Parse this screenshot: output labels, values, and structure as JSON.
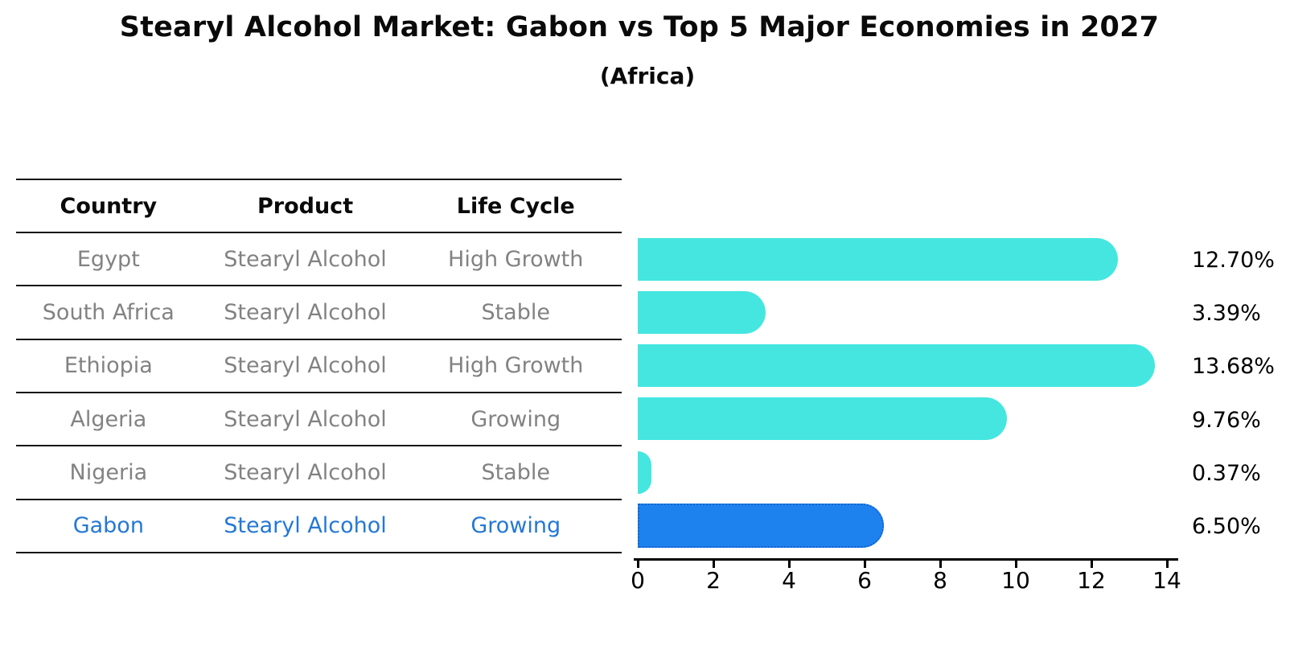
{
  "title": "Stearyl Alcohol Market: Gabon vs Top 5 Major Economies in 2027",
  "subtitle": "(Africa)",
  "colors": {
    "bar_default": "#45E6E0",
    "bar_highlight": "#1E82EE",
    "bar_highlight_border": "#1263CC",
    "highlight_text": "#2478D4",
    "cell_text": "#828282",
    "line": "#141414"
  },
  "table": {
    "headers": [
      "Country",
      "Product",
      "Life Cycle"
    ],
    "rows": [
      {
        "country": "Egypt",
        "product": "Stearyl Alcohol",
        "life_cycle": "High Growth",
        "highlight": false
      },
      {
        "country": "South Africa",
        "product": "Stearyl Alcohol",
        "life_cycle": "Stable",
        "highlight": false
      },
      {
        "country": "Ethiopia",
        "product": "Stearyl Alcohol",
        "life_cycle": "High Growth",
        "highlight": false
      },
      {
        "country": "Algeria",
        "product": "Stearyl Alcohol",
        "life_cycle": "Growing",
        "highlight": false
      },
      {
        "country": "Nigeria",
        "product": "Stearyl Alcohol",
        "life_cycle": "Stable",
        "highlight": false
      },
      {
        "country": "Gabon",
        "product": "Stearyl Alcohol",
        "life_cycle": "Growing",
        "highlight": true
      }
    ]
  },
  "chart_data": {
    "type": "bar",
    "orientation": "horizontal",
    "title": "Stearyl Alcohol Market: Gabon vs Top 5 Major Economies in 2027",
    "subtitle": "(Africa)",
    "categories": [
      "Egypt",
      "South Africa",
      "Ethiopia",
      "Algeria",
      "Nigeria",
      "Gabon"
    ],
    "values": [
      12.7,
      3.39,
      13.68,
      9.76,
      0.37,
      6.5
    ],
    "value_labels": [
      "12.70%",
      "3.39%",
      "13.68%",
      "9.76%",
      "0.37%",
      "6.50%"
    ],
    "highlight_index": 5,
    "xlabel": "",
    "ylabel": "",
    "xlim": [
      0,
      14.3
    ],
    "x_ticks": [
      0,
      2,
      4,
      6,
      8,
      10,
      12,
      14
    ],
    "grid": false,
    "legend": false
  }
}
